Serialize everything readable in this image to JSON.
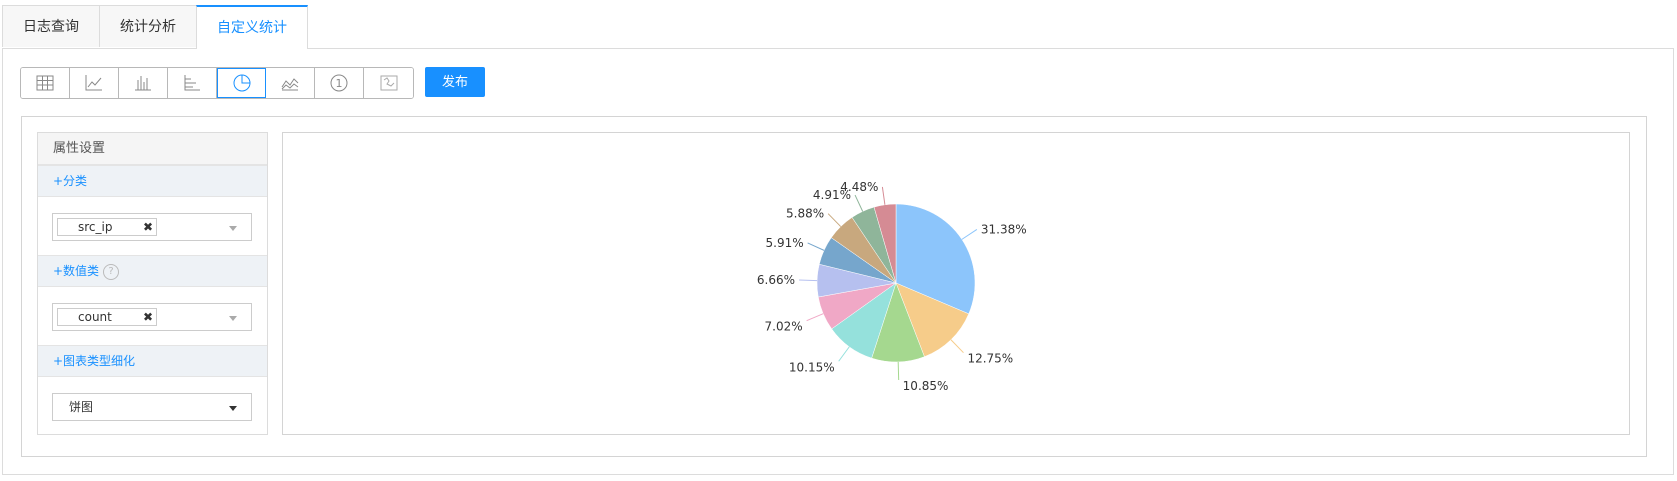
{
  "tabs": [
    {
      "label": "日志查询",
      "active": false
    },
    {
      "label": "统计分析",
      "active": false
    },
    {
      "label": "自定义统计",
      "active": true
    }
  ],
  "toolbar": {
    "buttons": [
      {
        "icon": "table-icon",
        "active": false
      },
      {
        "icon": "line-chart-icon",
        "active": false
      },
      {
        "icon": "bar-chart-icon",
        "active": false
      },
      {
        "icon": "horizontal-bar-chart-icon",
        "active": false
      },
      {
        "icon": "pie-chart-icon",
        "active": true
      },
      {
        "icon": "area-chart-icon",
        "active": false
      },
      {
        "icon": "single-value-icon",
        "active": false
      },
      {
        "icon": "map-icon",
        "active": false
      }
    ],
    "publish_label": "发布"
  },
  "settings": {
    "title": "属性设置",
    "category": {
      "header": "+分类",
      "tag": "src_ip"
    },
    "numeric": {
      "header": "+数值类",
      "help": "?",
      "tag": "count"
    },
    "chart_subtype": {
      "header": "+图表类型细化",
      "value": "饼图"
    }
  },
  "colors": {
    "accent": "#1890ff"
  },
  "chart_data": {
    "type": "pie",
    "values": [
      31.38,
      12.75,
      10.85,
      10.15,
      7.02,
      6.66,
      5.91,
      5.88,
      4.91,
      4.48
    ],
    "labels": [
      "31.38%",
      "12.75%",
      "10.85%",
      "10.15%",
      "7.02%",
      "6.66%",
      "5.91%",
      "5.88%",
      "4.91%",
      "4.48%"
    ],
    "colors": [
      "#8cc5fb",
      "#f6cc8a",
      "#a5d88f",
      "#95e1dc",
      "#f0a8c6",
      "#b6c0ef",
      "#76a6cc",
      "#c8a87e",
      "#8fb59a",
      "#d58b94"
    ]
  }
}
